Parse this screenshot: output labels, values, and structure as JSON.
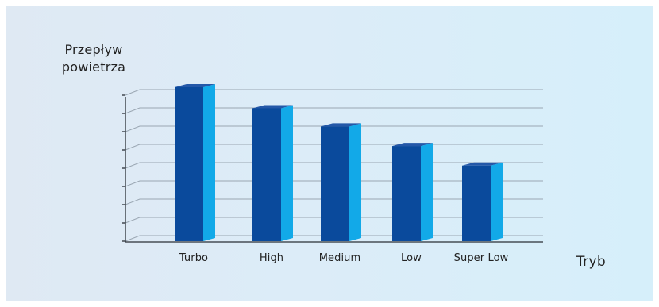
{
  "chart_data": {
    "type": "bar",
    "title": "",
    "ylabel_lines": [
      "Przepływ",
      "powietrza"
    ],
    "xlabel": "Tryb",
    "categories": [
      "Turbo",
      "High",
      "Medium",
      "Low",
      "Super Low"
    ],
    "values": [
      11,
      9.5,
      8.2,
      6.8,
      5.4
    ],
    "ylim": [
      0,
      11
    ],
    "y_ticks_labeled": false,
    "grid": true,
    "colors": {
      "bar_front": "#0a4a9c",
      "bar_side": "#12a9e8",
      "bar_top": "#2458a8",
      "grid": "#9aa6b2",
      "axis": "#2a2f36"
    }
  }
}
